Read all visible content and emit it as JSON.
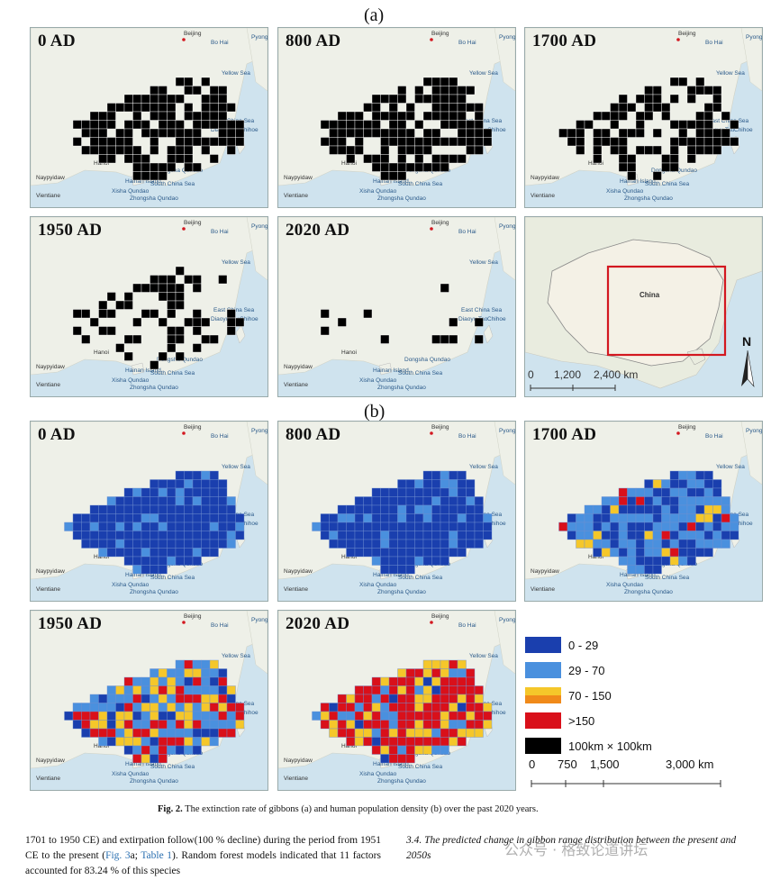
{
  "figure": {
    "section_a_label": "(a)",
    "section_b_label": "(b)",
    "panels_a": [
      {
        "year": "0 AD"
      },
      {
        "year": "800 AD"
      },
      {
        "year": "1700 AD"
      },
      {
        "year": "1950 AD"
      },
      {
        "year": "2020 AD"
      }
    ],
    "panels_b": [
      {
        "year": "0 AD"
      },
      {
        "year": "800 AD"
      },
      {
        "year": "1700 AD"
      },
      {
        "year": "1950 AD"
      },
      {
        "year": "2020 AD"
      }
    ],
    "map_places": {
      "beijing": "Beijing",
      "bohai": "Bo Hai",
      "pyongyang": "Pyong",
      "yellow_sea": "Yellow Sea",
      "east_china_sea": "East China Sea",
      "diaoyu": "Diaoyu Tao",
      "chihoe": "Chihoe",
      "hanoi": "Hanoi",
      "naypyidaw": "Naypyidaw",
      "vientiane": "Vientiane",
      "dongsha": "Dongsha Qundao",
      "south_china_sea": "South China Sea",
      "xisha": "Xisha Qundao",
      "hainan": "Hainan Island",
      "zhongsha": "Zhongsha Qundao"
    },
    "overview_map": {
      "country_label": "China",
      "north_label": "N",
      "scale_0": "0",
      "scale_1": "1,200",
      "scale_2": "2,400 km"
    },
    "legend": {
      "items": [
        {
          "label": "0 - 29",
          "color": "#1a3fae"
        },
        {
          "label": "29 - 70",
          "color": "#4a90de"
        },
        {
          "label": "70 - 150",
          "color": "#f5c72a"
        },
        {
          "label": ">150",
          "color": "#d9101a"
        },
        {
          "label": "100km × 100km",
          "color": "#000000"
        }
      ],
      "scale_0": "0",
      "scale_1": "750",
      "scale_2": "1,500",
      "scale_3": "3,000 km"
    },
    "caption_label": "Fig. 2.",
    "caption_text": "The extinction rate of gibbons (a) and human population density (b) over the past 2020 years."
  },
  "body": {
    "left_1": "1701 to 1950 CE) and extirpation follow(100 % decline) during the period from 1951 CE to the present (",
    "left_link1": "Fig. 3",
    "left_2": "a; ",
    "left_link2": "Table 1",
    "left_3": "). Random forest models indicated that 11 factors accounted for 83.24 % of this species",
    "right_text": "3.4.  The predicted change in gibbon range distribution between the present and 2050s",
    "watermark": "公众号 · 格致论道讲坛"
  },
  "colors": {
    "land": "#eef0e8",
    "sea": "#cfe3ee",
    "dark_blue": "#1a3fae",
    "mid_blue": "#4a90de",
    "yellow": "#f5c72a",
    "red": "#d9101a"
  }
}
